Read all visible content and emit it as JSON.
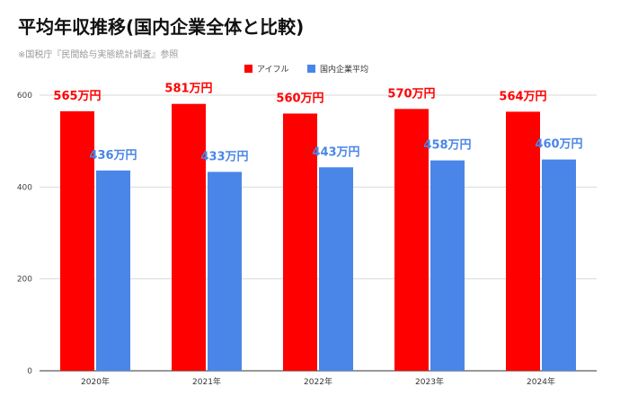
{
  "chart_data": {
    "type": "bar",
    "title": "平均年収推移(国内企業全体と比較)",
    "subtitle": "※国税庁『民間給与実態統計調査』参照",
    "categories": [
      "2020年",
      "2021年",
      "2022年",
      "2023年",
      "2024年"
    ],
    "series": [
      {
        "name": "アイフル",
        "color": "#ff0000",
        "label_color": "#ff0000",
        "values": [
          565,
          581,
          560,
          570,
          564
        ],
        "labels": [
          "565万円",
          "581万円",
          "560万円",
          "570万円",
          "564万円"
        ]
      },
      {
        "name": "国内企業平均",
        "color": "#4a86e8",
        "label_color": "#4a86e8",
        "values": [
          436,
          433,
          443,
          458,
          460
        ],
        "labels": [
          "436万円",
          "433万円",
          "443万円",
          "458万円",
          "460万円"
        ]
      }
    ],
    "ylim": [
      0,
      600
    ],
    "yticks": [
      0,
      200,
      400,
      600
    ],
    "grid": true,
    "legend_position": "top-center",
    "xlabel": "",
    "ylabel": ""
  }
}
